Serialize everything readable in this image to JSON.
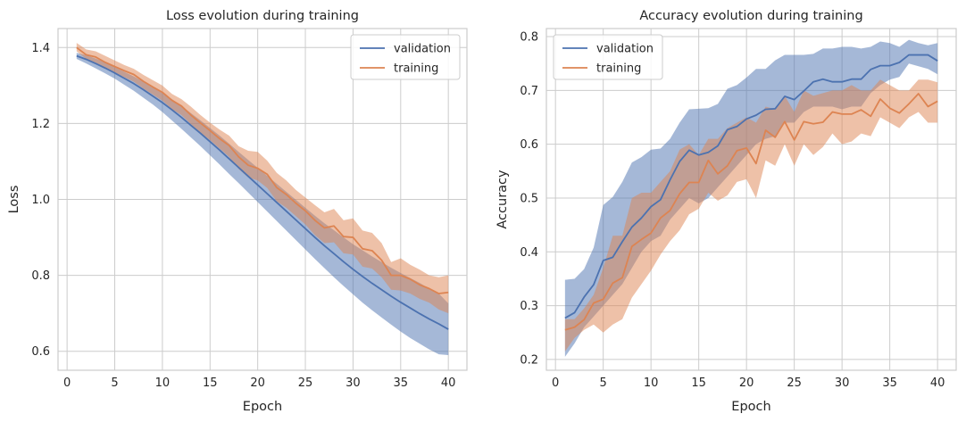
{
  "chart_data": [
    {
      "type": "line",
      "title": "Loss evolution during training",
      "xlabel": "Epoch",
      "ylabel": "Loss",
      "xlim": [
        -0.95,
        41.95
      ],
      "ylim": [
        0.55,
        1.45
      ],
      "xticks": [
        0,
        5,
        10,
        15,
        20,
        25,
        30,
        35,
        40
      ],
      "yticks": [
        0.6,
        0.8,
        1.0,
        1.2,
        1.4
      ],
      "ytick_labels": [
        "0.6",
        "0.8",
        "1.0",
        "1.2",
        "1.4"
      ],
      "grid": true,
      "legend_position": "top-right",
      "x": [
        1,
        2,
        3,
        4,
        5,
        6,
        7,
        8,
        9,
        10,
        11,
        12,
        13,
        14,
        15,
        16,
        17,
        18,
        19,
        20,
        21,
        22,
        23,
        24,
        25,
        26,
        27,
        28,
        29,
        30,
        31,
        32,
        33,
        34,
        35,
        36,
        37,
        38,
        39,
        40
      ],
      "series": [
        {
          "name": "validation",
          "color": "#4c72b0",
          "values": [
            1.378,
            1.369,
            1.358,
            1.346,
            1.333,
            1.319,
            1.305,
            1.289,
            1.272,
            1.255,
            1.236,
            1.216,
            1.195,
            1.174,
            1.152,
            1.13,
            1.107,
            1.084,
            1.061,
            1.038,
            1.015,
            0.992,
            0.969,
            0.946,
            0.923,
            0.9,
            0.878,
            0.857,
            0.836,
            0.816,
            0.797,
            0.779,
            0.762,
            0.745,
            0.729,
            0.714,
            0.699,
            0.685,
            0.672,
            0.658
          ],
          "lower": [
            1.37,
            1.358,
            1.345,
            1.332,
            1.318,
            1.302,
            1.286,
            1.268,
            1.25,
            1.23,
            1.208,
            1.186,
            1.163,
            1.14,
            1.116,
            1.092,
            1.067,
            1.043,
            1.018,
            0.993,
            0.968,
            0.943,
            0.918,
            0.893,
            0.868,
            0.843,
            0.819,
            0.795,
            0.772,
            0.75,
            0.728,
            0.708,
            0.689,
            0.67,
            0.652,
            0.635,
            0.62,
            0.605,
            0.592,
            0.59
          ],
          "upper": [
            1.386,
            1.38,
            1.371,
            1.361,
            1.348,
            1.336,
            1.324,
            1.31,
            1.294,
            1.28,
            1.264,
            1.246,
            1.227,
            1.208,
            1.188,
            1.168,
            1.147,
            1.125,
            1.104,
            1.083,
            1.062,
            1.041,
            1.02,
            0.999,
            0.978,
            0.957,
            0.937,
            0.919,
            0.9,
            0.882,
            0.866,
            0.85,
            0.835,
            0.82,
            0.806,
            0.793,
            0.78,
            0.765,
            0.752,
            0.726
          ]
        },
        {
          "name": "training",
          "color": "#dd8452",
          "values": [
            1.4,
            1.381,
            1.375,
            1.361,
            1.35,
            1.339,
            1.329,
            1.311,
            1.296,
            1.282,
            1.261,
            1.246,
            1.222,
            1.201,
            1.181,
            1.16,
            1.142,
            1.112,
            1.09,
            1.082,
            1.066,
            1.031,
            1.013,
            0.99,
            0.97,
            0.945,
            0.925,
            0.93,
            0.902,
            0.9,
            0.87,
            0.865,
            0.84,
            0.8,
            0.8,
            0.79,
            0.775,
            0.765,
            0.752,
            0.755
          ],
          "lower": [
            1.39,
            1.37,
            1.36,
            1.345,
            1.335,
            1.322,
            1.31,
            1.292,
            1.276,
            1.26,
            1.238,
            1.222,
            1.198,
            1.176,
            1.156,
            1.134,
            1.112,
            1.08,
            1.058,
            1.05,
            1.03,
            0.995,
            0.978,
            0.956,
            0.934,
            0.906,
            0.885,
            0.887,
            0.858,
            0.855,
            0.823,
            0.818,
            0.795,
            0.762,
            0.76,
            0.752,
            0.738,
            0.728,
            0.71,
            0.7
          ],
          "upper": [
            1.412,
            1.395,
            1.39,
            1.378,
            1.366,
            1.354,
            1.344,
            1.328,
            1.314,
            1.3,
            1.278,
            1.264,
            1.244,
            1.222,
            1.202,
            1.184,
            1.168,
            1.14,
            1.128,
            1.125,
            1.102,
            1.07,
            1.05,
            1.025,
            1.005,
            0.985,
            0.966,
            0.975,
            0.945,
            0.95,
            0.918,
            0.912,
            0.885,
            0.835,
            0.845,
            0.828,
            0.815,
            0.8,
            0.795,
            0.8
          ]
        }
      ]
    },
    {
      "type": "line",
      "title": "Accuracy evolution during training",
      "xlabel": "Epoch",
      "ylabel": "Accuracy",
      "xlim": [
        -0.95,
        41.95
      ],
      "ylim": [
        0.18,
        0.815
      ],
      "xticks": [
        0,
        5,
        10,
        15,
        20,
        25,
        30,
        35,
        40
      ],
      "yticks": [
        0.2,
        0.3,
        0.4,
        0.5,
        0.6,
        0.7,
        0.8
      ],
      "ytick_labels": [
        "0.2",
        "0.3",
        "0.4",
        "0.5",
        "0.6",
        "0.7",
        "0.8"
      ],
      "grid": true,
      "legend_position": "top-left",
      "x": [
        1,
        2,
        3,
        4,
        5,
        6,
        7,
        8,
        9,
        10,
        11,
        12,
        13,
        14,
        15,
        16,
        17,
        18,
        19,
        20,
        21,
        22,
        23,
        24,
        25,
        26,
        27,
        28,
        29,
        30,
        31,
        32,
        33,
        34,
        35,
        36,
        37,
        38,
        39,
        40
      ],
      "series": [
        {
          "name": "validation",
          "color": "#4c72b0",
          "values": [
            0.277,
            0.287,
            0.316,
            0.339,
            0.384,
            0.39,
            0.419,
            0.446,
            0.463,
            0.484,
            0.497,
            0.534,
            0.568,
            0.589,
            0.58,
            0.585,
            0.597,
            0.627,
            0.633,
            0.647,
            0.654,
            0.665,
            0.666,
            0.689,
            0.683,
            0.699,
            0.716,
            0.721,
            0.716,
            0.716,
            0.721,
            0.721,
            0.739,
            0.746,
            0.746,
            0.752,
            0.766,
            0.766,
            0.766,
            0.755
          ],
          "lower": [
            0.205,
            0.23,
            0.26,
            0.28,
            0.3,
            0.32,
            0.34,
            0.37,
            0.4,
            0.42,
            0.43,
            0.46,
            0.48,
            0.5,
            0.49,
            0.5,
            0.52,
            0.54,
            0.56,
            0.58,
            0.6,
            0.61,
            0.615,
            0.64,
            0.64,
            0.66,
            0.67,
            0.67,
            0.67,
            0.665,
            0.67,
            0.67,
            0.695,
            0.71,
            0.72,
            0.725,
            0.75,
            0.745,
            0.74,
            0.73
          ],
          "upper": [
            0.348,
            0.35,
            0.368,
            0.408,
            0.487,
            0.502,
            0.53,
            0.566,
            0.576,
            0.59,
            0.592,
            0.61,
            0.64,
            0.665,
            0.666,
            0.667,
            0.675,
            0.703,
            0.71,
            0.724,
            0.74,
            0.74,
            0.756,
            0.766,
            0.766,
            0.766,
            0.768,
            0.778,
            0.778,
            0.781,
            0.781,
            0.778,
            0.781,
            0.791,
            0.788,
            0.781,
            0.794,
            0.788,
            0.784,
            0.788
          ]
        },
        {
          "name": "training",
          "color": "#dd8452",
          "values": [
            0.255,
            0.26,
            0.274,
            0.305,
            0.312,
            0.342,
            0.352,
            0.41,
            0.423,
            0.435,
            0.463,
            0.477,
            0.508,
            0.529,
            0.529,
            0.57,
            0.545,
            0.56,
            0.588,
            0.593,
            0.564,
            0.626,
            0.613,
            0.642,
            0.608,
            0.642,
            0.638,
            0.641,
            0.66,
            0.656,
            0.656,
            0.664,
            0.652,
            0.684,
            0.667,
            0.658,
            0.675,
            0.694,
            0.67,
            0.68
          ],
          "lower": [
            0.215,
            0.24,
            0.255,
            0.265,
            0.25,
            0.265,
            0.275,
            0.315,
            0.34,
            0.365,
            0.395,
            0.42,
            0.44,
            0.47,
            0.48,
            0.51,
            0.495,
            0.505,
            0.53,
            0.535,
            0.5,
            0.57,
            0.56,
            0.6,
            0.56,
            0.6,
            0.58,
            0.595,
            0.62,
            0.6,
            0.605,
            0.62,
            0.615,
            0.65,
            0.64,
            0.63,
            0.65,
            0.66,
            0.64,
            0.64
          ],
          "upper": [
            0.275,
            0.275,
            0.295,
            0.32,
            0.37,
            0.43,
            0.43,
            0.5,
            0.51,
            0.51,
            0.53,
            0.55,
            0.59,
            0.6,
            0.58,
            0.61,
            0.61,
            0.63,
            0.64,
            0.65,
            0.64,
            0.67,
            0.665,
            0.69,
            0.66,
            0.7,
            0.69,
            0.695,
            0.7,
            0.7,
            0.71,
            0.7,
            0.7,
            0.72,
            0.71,
            0.7,
            0.7,
            0.72,
            0.72,
            0.715
          ]
        }
      ]
    }
  ]
}
